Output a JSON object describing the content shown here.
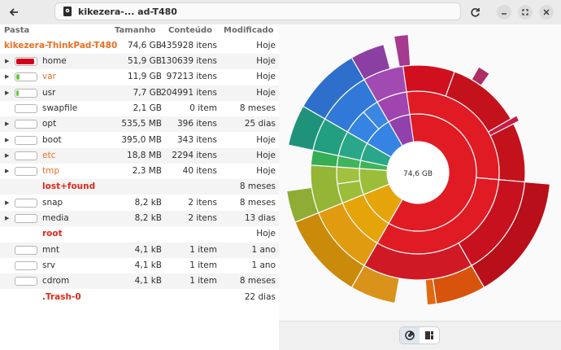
{
  "header": {
    "path_text": "kikezera-...  ad-T480"
  },
  "columns": {
    "folder": "Pasta",
    "size": "Tamanho",
    "content": "Conteúdo",
    "modified": "Modificado"
  },
  "root": {
    "name": "kikezera-ThinkPad-T480",
    "size": "74,6 GB",
    "count": "435928 itens",
    "modified": "Hoje"
  },
  "rows": [
    {
      "name": "home",
      "size": "51,9 GB",
      "count": "130639 itens",
      "modified": "Hoje",
      "fill": 0.9,
      "color": "#d0021b"
    },
    {
      "name": "var",
      "size": "11,9 GB",
      "count": "97213 itens",
      "modified": "Hoje",
      "fill": 0.15,
      "color": "#6cc644"
    },
    {
      "name": "usr",
      "size": "7,7 GB",
      "count": "204991 itens",
      "modified": "Hoje",
      "fill": 0.1,
      "color": "#6cc644"
    },
    {
      "name": "swapfile",
      "size": "2,1 GB",
      "count": "0 item",
      "modified": "8 meses",
      "fill": 0,
      "color": "#6cc644"
    },
    {
      "name": "opt",
      "size": "535,5 MB",
      "count": "396 itens",
      "modified": "25 dias",
      "fill": 0,
      "color": "#6cc644"
    },
    {
      "name": "boot",
      "size": "395,0 MB",
      "count": "343 itens",
      "modified": "Hoje",
      "fill": 0,
      "color": "#6cc644"
    },
    {
      "name": "etc",
      "size": "18,8 MB",
      "count": "2294 itens",
      "modified": "Hoje",
      "fill": 0,
      "color": "#6cc644"
    },
    {
      "name": "tmp",
      "size": "2,3 MB",
      "count": "40 itens",
      "modified": "Hoje",
      "fill": 0,
      "color": "#6cc644"
    },
    {
      "name": "lost+found",
      "size": "",
      "count": "",
      "modified": "8 meses",
      "fill": 0,
      "color": "#6cc644"
    },
    {
      "name": "snap",
      "size": "8,2 kB",
      "count": "2 itens",
      "modified": "8 meses",
      "fill": 0,
      "color": "#6cc644"
    },
    {
      "name": "media",
      "size": "8,2 kB",
      "count": "2 itens",
      "modified": "13 dias",
      "fill": 0,
      "color": "#6cc644"
    },
    {
      "name": "root",
      "size": "",
      "count": "",
      "modified": "Hoje",
      "fill": 0,
      "color": "#6cc644"
    },
    {
      "name": "mnt",
      "size": "4,1 kB",
      "count": "1 item",
      "modified": "1 ano",
      "fill": 0,
      "color": "#6cc644"
    },
    {
      "name": "srv",
      "size": "4,1 kB",
      "count": "1 item",
      "modified": "1 ano",
      "fill": 0,
      "color": "#6cc644"
    },
    {
      "name": "cdrom",
      "size": "4,1 kB",
      "count": "1 item",
      "modified": "8 meses",
      "fill": 0,
      "color": "#6cc644"
    },
    {
      "name": ".Trash-0",
      "size": "",
      "count": "",
      "modified": "22 dias",
      "fill": 0,
      "color": "#6cc644"
    }
  ],
  "chart": {
    "center_label": "74,6 GB"
  }
}
